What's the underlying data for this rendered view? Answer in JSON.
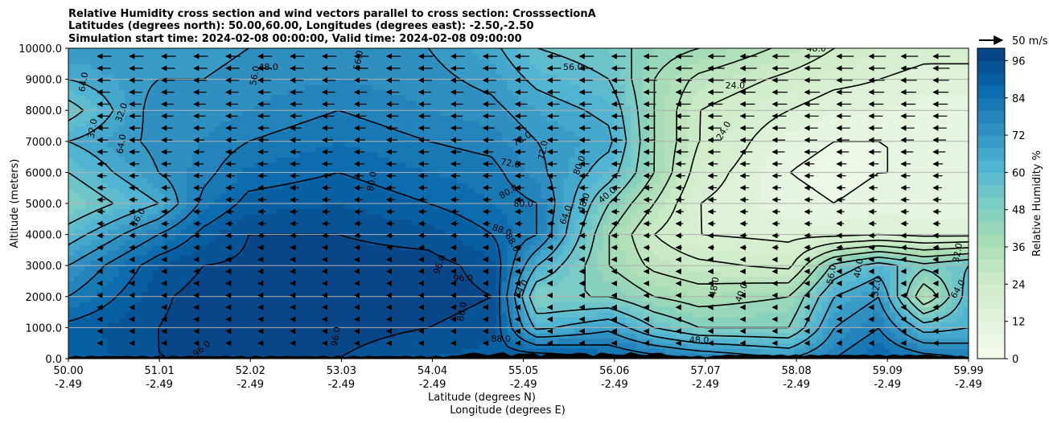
{
  "chart_data": {
    "type": "heatmap",
    "title_lines": [
      "Relative Humidity cross section and wind vectors parallel to cross section: CrosssectionA",
      "Latitudes (degrees north): 50.00,60.00, Longitudes (degrees east): -2.50,-2.50",
      "Simulation start time: 2024-02-08 00:00:00, Valid time: 2024-02-08 09:00:00"
    ],
    "xlabel_lines": [
      "Latitude (degrees N)",
      "Longitude (degrees E)"
    ],
    "ylabel": "Altitude (meters)",
    "colorbar_label": "Relative Humidity %",
    "quiver_key_label": "50 m/s",
    "x_ticks": [
      {
        "lat": "50.00",
        "lon": "-2.49"
      },
      {
        "lat": "51.01",
        "lon": "-2.49"
      },
      {
        "lat": "52.02",
        "lon": "-2.49"
      },
      {
        "lat": "53.03",
        "lon": "-2.49"
      },
      {
        "lat": "54.04",
        "lon": "-2.49"
      },
      {
        "lat": "55.05",
        "lon": "-2.49"
      },
      {
        "lat": "56.06",
        "lon": "-2.49"
      },
      {
        "lat": "57.07",
        "lon": "-2.49"
      },
      {
        "lat": "58.08",
        "lon": "-2.49"
      },
      {
        "lat": "59.09",
        "lon": "-2.49"
      },
      {
        "lat": "59.99",
        "lon": "-2.49"
      }
    ],
    "x_tick_values": [
      50.0,
      51.01,
      52.02,
      53.03,
      54.04,
      55.05,
      56.06,
      57.07,
      58.08,
      59.09,
      59.99
    ],
    "xlim": [
      50.0,
      59.99
    ],
    "y_ticks": [
      "0.0",
      "1000.0",
      "2000.0",
      "3000.0",
      "4000.0",
      "5000.0",
      "6000.0",
      "7000.0",
      "8000.0",
      "9000.0",
      "10000.0"
    ],
    "y_tick_values": [
      0,
      1000,
      2000,
      3000,
      4000,
      5000,
      6000,
      7000,
      8000,
      9000,
      10000
    ],
    "ylim": [
      0,
      10000
    ],
    "grid": "horizontal",
    "colorbar_ticks": [
      "0",
      "12",
      "24",
      "36",
      "48",
      "60",
      "72",
      "84",
      "96"
    ],
    "colorbar_tick_values": [
      0,
      12,
      24,
      36,
      48,
      60,
      72,
      84,
      96
    ],
    "colorbar_range": [
      0,
      100
    ],
    "colormap_stops": [
      "#f7fcf0",
      "#e0f3db",
      "#ccebc5",
      "#a8ddb5",
      "#7bccc4",
      "#4eb3d3",
      "#2b8cbe",
      "#0868ac",
      "#084081"
    ],
    "rh_field": {
      "lats": [
        50.0,
        51.0,
        51.5,
        52.0,
        53.0,
        54.0,
        54.7,
        55.2,
        56.0,
        56.5,
        57.0,
        58.0,
        58.5,
        59.0,
        59.5,
        59.99
      ],
      "alts": [
        0,
        1000,
        2000,
        3000,
        4000,
        5000,
        6000,
        7000,
        8000,
        9000,
        10000
      ],
      "values": [
        [
          88,
          90,
          80,
          72,
          60,
          48,
          56,
          64,
          52,
          64,
          72
        ],
        [
          96,
          96,
          95,
          92,
          80,
          64,
          72,
          74,
          76,
          72,
          68
        ],
        [
          96,
          98,
          98,
          96,
          90,
          82,
          78,
          76,
          74,
          72,
          70
        ],
        [
          96,
          98,
          98,
          97,
          96,
          90,
          85,
          80,
          76,
          74,
          72
        ],
        [
          96,
          98,
          98,
          98,
          96,
          92,
          88,
          84,
          80,
          76,
          74
        ],
        [
          92,
          96,
          98,
          98,
          94,
          88,
          84,
          80,
          76,
          74,
          72
        ],
        [
          90,
          94,
          96,
          94,
          88,
          84,
          82,
          78,
          74,
          70,
          66
        ],
        [
          94,
          62,
          48,
          64,
          80,
          80,
          74,
          72,
          68,
          62,
          56
        ],
        [
          88,
          70,
          48,
          40,
          40,
          48,
          60,
          66,
          62,
          56,
          52
        ],
        [
          84,
          56,
          40,
          30,
          24,
          32,
          40,
          40,
          40,
          40,
          44
        ],
        [
          80,
          48,
          36,
          26,
          16,
          16,
          20,
          24,
          24,
          30,
          40
        ],
        [
          72,
          48,
          40,
          22,
          14,
          10,
          8,
          10,
          16,
          22,
          30
        ],
        [
          80,
          72,
          64,
          50,
          14,
          8,
          6,
          8,
          12,
          18,
          24
        ],
        [
          88,
          80,
          72,
          60,
          16,
          10,
          8,
          8,
          12,
          16,
          20
        ],
        [
          84,
          60,
          32,
          50,
          14,
          10,
          8,
          8,
          10,
          14,
          18
        ],
        [
          80,
          64,
          60,
          56,
          14,
          10,
          8,
          8,
          10,
          14,
          18
        ]
      ]
    },
    "contour_labels": [
      {
        "text": "64.0",
        "lat": 50.2,
        "alt": 8900,
        "rot": -80
      },
      {
        "text": "32.0",
        "lat": 50.3,
        "alt": 7400,
        "rot": -80
      },
      {
        "text": "32.0",
        "lat": 50.62,
        "alt": 7900,
        "rot": -70
      },
      {
        "text": "64.0",
        "lat": 50.62,
        "alt": 6900,
        "rot": -80
      },
      {
        "text": "16.0",
        "lat": 50.8,
        "alt": 4500,
        "rot": -60
      },
      {
        "text": "56.0",
        "lat": 52.1,
        "alt": 9100,
        "rot": -80
      },
      {
        "text": "48.0",
        "lat": 52.22,
        "alt": 9300,
        "rot": 0
      },
      {
        "text": "56.0",
        "lat": 53.25,
        "alt": 9600,
        "rot": -80
      },
      {
        "text": "56.0",
        "lat": 55.05,
        "alt": 10000,
        "rot": 0
      },
      {
        "text": "56.0",
        "lat": 55.6,
        "alt": 9300,
        "rot": 0
      },
      {
        "text": "72.0",
        "lat": 55.05,
        "alt": 7000,
        "rot": -30
      },
      {
        "text": "72.0",
        "lat": 55.3,
        "alt": 6700,
        "rot": -80
      },
      {
        "text": "72.0",
        "lat": 54.9,
        "alt": 6200,
        "rot": 10
      },
      {
        "text": "80.0",
        "lat": 53.4,
        "alt": 5700,
        "rot": -80
      },
      {
        "text": "80.0",
        "lat": 54.9,
        "alt": 5300,
        "rot": -30
      },
      {
        "text": "80.0",
        "lat": 55.05,
        "alt": 4900,
        "rot": 0
      },
      {
        "text": "88.0",
        "lat": 54.8,
        "alt": 4050,
        "rot": 20
      },
      {
        "text": "88.0",
        "lat": 54.9,
        "alt": 3700,
        "rot": 60
      },
      {
        "text": "96.0",
        "lat": 54.15,
        "alt": 3000,
        "rot": -70
      },
      {
        "text": "96.0",
        "lat": 54.38,
        "alt": 2500,
        "rot": 0
      },
      {
        "text": "80.0",
        "lat": 55.7,
        "alt": 6200,
        "rot": -70
      },
      {
        "text": "64.0",
        "lat": 55.55,
        "alt": 4600,
        "rot": -70
      },
      {
        "text": "48.0",
        "lat": 55.75,
        "alt": 5000,
        "rot": -70
      },
      {
        "text": "40.0",
        "lat": 56.0,
        "alt": 5200,
        "rot": -40
      },
      {
        "text": "24.0",
        "lat": 57.3,
        "alt": 7300,
        "rot": -60
      },
      {
        "text": "24.0",
        "lat": 57.4,
        "alt": 8700,
        "rot": 0
      },
      {
        "text": "48.0",
        "lat": 58.3,
        "alt": 9900,
        "rot": 0
      },
      {
        "text": "56.0",
        "lat": 58.5,
        "alt": 2700,
        "rot": -80
      },
      {
        "text": "48.0",
        "lat": 57.2,
        "alt": 2300,
        "rot": -80
      },
      {
        "text": "40.0",
        "lat": 57.5,
        "alt": 2100,
        "rot": -70
      },
      {
        "text": "40.0",
        "lat": 58.8,
        "alt": 2900,
        "rot": -80
      },
      {
        "text": "32.0",
        "lat": 59.0,
        "alt": 2300,
        "rot": -80
      },
      {
        "text": "32.0",
        "lat": 59.9,
        "alt": 3400,
        "rot": -80
      },
      {
        "text": "64.0",
        "lat": 59.9,
        "alt": 2200,
        "rot": -60
      },
      {
        "text": "24.0",
        "lat": 55.05,
        "alt": 2200,
        "rot": -60
      },
      {
        "text": "96.0",
        "lat": 53.0,
        "alt": 700,
        "rot": -80
      },
      {
        "text": "88.0",
        "lat": 54.4,
        "alt": 1500,
        "rot": -80
      },
      {
        "text": "88.0",
        "lat": 54.8,
        "alt": 550,
        "rot": 0
      },
      {
        "text": "96.0",
        "lat": 51.5,
        "alt": 250,
        "rot": -40
      },
      {
        "text": "48.0",
        "lat": 57.0,
        "alt": 500,
        "rot": 0
      }
    ]
  }
}
